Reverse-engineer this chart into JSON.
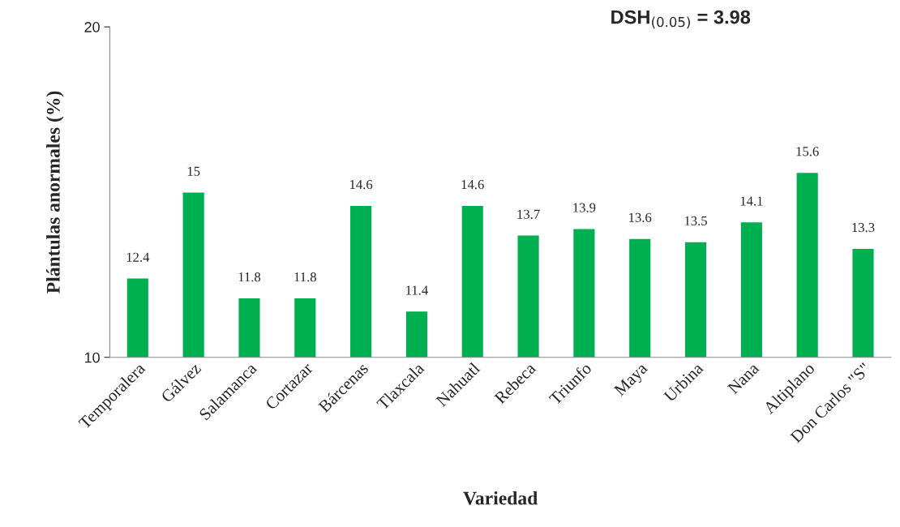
{
  "chart_data": {
    "type": "bar",
    "categories": [
      "Temporalera",
      "Gálvez",
      "Salamanca",
      "Cortazar",
      "Bárcenas",
      "Tlaxcala",
      "Nahuatl",
      "Rebeca",
      "Triunfo",
      "Maya",
      "Urbina",
      "Nana",
      "Altiplano",
      "Don Carlos \"S\""
    ],
    "values": [
      12.4,
      15,
      11.8,
      11.8,
      14.6,
      11.4,
      14.6,
      13.7,
      13.9,
      13.6,
      13.5,
      14.1,
      15.6,
      13.3
    ],
    "color": "#00b050",
    "ylim": [
      10,
      20
    ],
    "yticks": [
      10,
      20
    ],
    "xlabel": "Variedad",
    "ylabel": "Plántulas anormales (%)",
    "annotations": [
      "DSH$_{(0.05)}$ = 3.98"
    ],
    "data_labels": true,
    "grid": false,
    "legend": false
  }
}
